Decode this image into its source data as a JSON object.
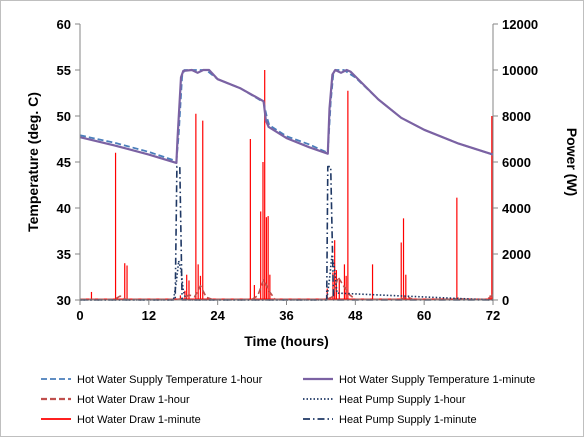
{
  "chart_data": {
    "type": "line",
    "title": "",
    "xlabel": "Time (hours)",
    "ylabel_left": "Temperature (deg. C)",
    "ylabel_right": "Power (W)",
    "xlim": [
      0,
      72
    ],
    "ylim_left": [
      30,
      60
    ],
    "ylim_right": [
      0,
      12000
    ],
    "x_ticks": [
      "0",
      "12",
      "24",
      "36",
      "48",
      "60",
      "72"
    ],
    "y_left_ticks": [
      "30",
      "35",
      "40",
      "45",
      "50",
      "55",
      "60"
    ],
    "y_right_ticks": [
      "0",
      "2000",
      "4000",
      "6000",
      "8000",
      "10000",
      "12000"
    ],
    "grid": false,
    "legend_position": "bottom",
    "series": [
      {
        "name": "Hot Water Supply Temperature 1-hour",
        "axis": "left",
        "color": "#4a7ebb",
        "style": "dashed",
        "x": [
          0,
          6,
          12,
          16.8,
          17.2,
          17.8,
          18.2,
          20,
          22,
          24,
          28,
          32,
          32.6,
          33,
          36,
          40,
          43.2,
          43.7,
          44.2,
          44.6,
          46,
          48,
          52,
          56,
          60,
          66,
          72
        ],
        "y": [
          47.9,
          47.1,
          46.1,
          45.1,
          48.0,
          54.3,
          55.0,
          55.0,
          55.0,
          54.0,
          53.0,
          51.5,
          49.8,
          49.0,
          47.8,
          46.9,
          46.0,
          51.5,
          54.8,
          55.0,
          55.0,
          54.2,
          51.8,
          49.8,
          48.5,
          47.0,
          45.8
        ]
      },
      {
        "name": "Hot Water Supply Temperature 1-minute",
        "axis": "left",
        "color": "#7b62a3",
        "style": "solid",
        "x": [
          0,
          6,
          12,
          16.8,
          17.0,
          17.6,
          18.0,
          19.5,
          20.5,
          21.5,
          22.5,
          24,
          28,
          32,
          32.4,
          32.9,
          36,
          40,
          43.2,
          43.5,
          44.0,
          44.5,
          45.5,
          46.5,
          47.2,
          48,
          52,
          56,
          60,
          66,
          72
        ],
        "y": [
          47.7,
          46.8,
          45.8,
          44.9,
          47.5,
          54.2,
          54.9,
          55.0,
          54.7,
          55.0,
          55.0,
          54.0,
          53.0,
          51.6,
          49.5,
          48.8,
          47.6,
          46.6,
          45.9,
          50.8,
          54.5,
          55.0,
          54.7,
          55.0,
          54.8,
          54.3,
          51.8,
          49.8,
          48.5,
          47.0,
          45.8
        ]
      },
      {
        "name": "Hot Water Draw 1-hour",
        "axis": "right",
        "color": "#c0504d",
        "style": "dashed",
        "x": [
          0,
          6,
          7,
          8,
          17,
          18,
          19,
          20,
          21,
          22,
          23,
          24,
          30,
          31,
          32,
          33,
          34,
          43,
          44,
          45,
          46,
          47,
          48,
          56,
          57,
          58,
          65,
          66,
          67,
          71,
          72
        ],
        "y": [
          30,
          30,
          170,
          30,
          30,
          60,
          220,
          140,
          620,
          120,
          30,
          30,
          30,
          190,
          870,
          380,
          30,
          30,
          140,
          1000,
          590,
          230,
          30,
          30,
          150,
          30,
          30,
          80,
          30,
          30,
          230
        ]
      },
      {
        "name": "Hot Water Draw 1-minute",
        "axis": "right",
        "color": "#ff0000",
        "style": "solid",
        "spikes": [
          {
            "x": 2.0,
            "y": 350
          },
          {
            "x": 6.2,
            "y": 6400
          },
          {
            "x": 7.8,
            "y": 1600
          },
          {
            "x": 8.2,
            "y": 1500
          },
          {
            "x": 17.5,
            "y": 200
          },
          {
            "x": 18.3,
            "y": 400
          },
          {
            "x": 18.6,
            "y": 1100
          },
          {
            "x": 19.0,
            "y": 850
          },
          {
            "x": 20.2,
            "y": 8100
          },
          {
            "x": 20.6,
            "y": 1550
          },
          {
            "x": 21.0,
            "y": 1050
          },
          {
            "x": 21.4,
            "y": 7800
          },
          {
            "x": 29.7,
            "y": 7000
          },
          {
            "x": 30.4,
            "y": 650
          },
          {
            "x": 31.5,
            "y": 3850
          },
          {
            "x": 31.9,
            "y": 6000
          },
          {
            "x": 32.2,
            "y": 10000
          },
          {
            "x": 32.5,
            "y": 3600
          },
          {
            "x": 32.8,
            "y": 3650
          },
          {
            "x": 33.1,
            "y": 1100
          },
          {
            "x": 43.1,
            "y": 500
          },
          {
            "x": 44.1,
            "y": 1200
          },
          {
            "x": 44.4,
            "y": 2600
          },
          {
            "x": 44.7,
            "y": 1300
          },
          {
            "x": 45.2,
            "y": 900
          },
          {
            "x": 46.1,
            "y": 1550
          },
          {
            "x": 46.4,
            "y": 1050
          },
          {
            "x": 46.7,
            "y": 9100
          },
          {
            "x": 51.0,
            "y": 1550
          },
          {
            "x": 56.0,
            "y": 2500
          },
          {
            "x": 56.4,
            "y": 3550
          },
          {
            "x": 56.8,
            "y": 1100
          },
          {
            "x": 65.7,
            "y": 4450
          },
          {
            "x": 71.5,
            "y": 200
          },
          {
            "x": 71.8,
            "y": 8000
          }
        ]
      },
      {
        "name": "Heat Pump Supply 1-hour",
        "axis": "right",
        "color": "#1f3864",
        "style": "dotted",
        "x": [
          0,
          16.3,
          16.8,
          17.2,
          17.6,
          18.0,
          18.5,
          43.0,
          43.5,
          43.9,
          44.3,
          44.8,
          72
        ],
        "y": [
          0,
          0,
          800,
          1700,
          1300,
          400,
          0,
          0,
          900,
          1900,
          1500,
          300,
          0
        ]
      },
      {
        "name": "Heat Pump Supply 1-minute",
        "axis": "right",
        "color": "#1f3864",
        "style": "dashdot",
        "x": [
          0,
          16.6,
          16.9,
          17.4,
          17.8,
          43.0,
          43.2,
          43.7,
          44.2,
          72
        ],
        "y": [
          0,
          0,
          5800,
          5800,
          0,
          0,
          5800,
          5800,
          0,
          0
        ]
      }
    ]
  }
}
